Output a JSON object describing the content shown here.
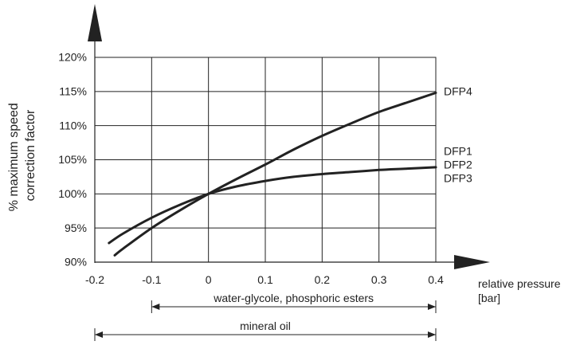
{
  "chart_data": {
    "type": "line",
    "ylabel": [
      "% maximum speed",
      "correction factor"
    ],
    "xlabel": [
      "relative pressure",
      "[bar]"
    ],
    "xlim": [
      -0.2,
      0.4
    ],
    "ylim": [
      90,
      120
    ],
    "x_ticks": [
      "-0.2",
      "-0.1",
      "0",
      "0.1",
      "0.2",
      "0.3",
      "0.4"
    ],
    "y_ticks": [
      "90%",
      "95%",
      "100%",
      "105%",
      "110%",
      "115%",
      "120%"
    ],
    "grid": true,
    "series": [
      {
        "name": "DFP4",
        "x": [
          -0.165,
          -0.15,
          -0.1,
          -0.05,
          0,
          0.05,
          0.1,
          0.15,
          0.2,
          0.25,
          0.3,
          0.35,
          0.4
        ],
        "y": [
          91.0,
          92.0,
          95.0,
          97.6,
          100.0,
          102.2,
          104.3,
          106.5,
          108.5,
          110.3,
          112.0,
          113.4,
          114.8
        ]
      },
      {
        "name": "DFP1 / DFP2 / DFP3",
        "x": [
          -0.175,
          -0.15,
          -0.1,
          -0.05,
          0,
          0.05,
          0.1,
          0.15,
          0.2,
          0.25,
          0.3,
          0.35,
          0.4
        ],
        "y": [
          92.8,
          94.2,
          96.5,
          98.4,
          100.0,
          101.1,
          101.9,
          102.5,
          102.9,
          103.2,
          103.5,
          103.7,
          103.9
        ]
      }
    ],
    "series_labels": [
      "DFP4",
      "DFP1",
      "DFP2",
      "DFP3"
    ],
    "ranges": [
      {
        "label": "water-glycole, phosphoric esters",
        "from": -0.1,
        "to": 0.4
      },
      {
        "label": "mineral oil",
        "from": -0.2,
        "to": 0.4
      }
    ]
  }
}
